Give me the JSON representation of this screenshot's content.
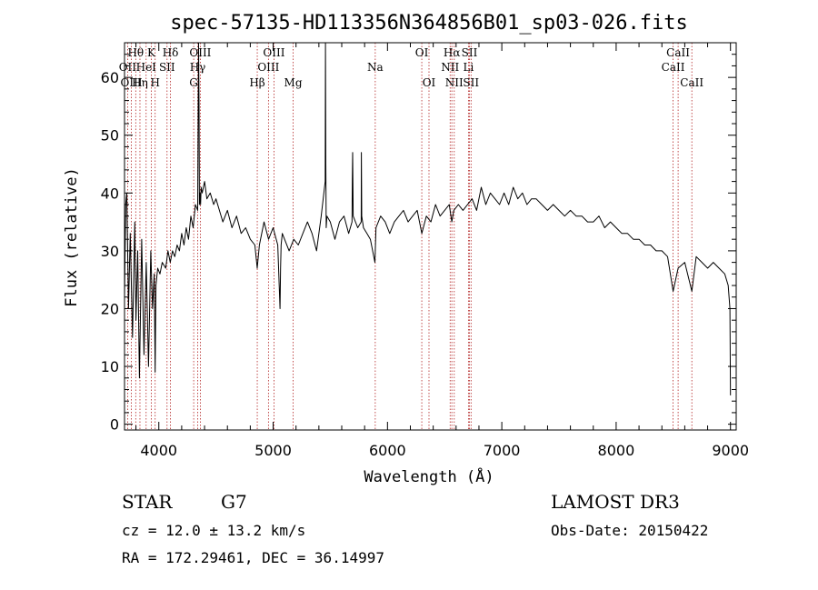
{
  "chart_data": {
    "type": "line",
    "title": "spec-57135-HD113356N364856B01_sp03-026.fits",
    "xlabel": "Wavelength (Å)",
    "ylabel": "Flux (relative)",
    "xlim": [
      3700,
      9050
    ],
    "ylim": [
      -1,
      66
    ],
    "xticks": [
      4000,
      5000,
      6000,
      7000,
      8000,
      9000
    ],
    "yticks": [
      0,
      10,
      20,
      30,
      40,
      50,
      60
    ],
    "line_color": "#000000",
    "marker_color": "#b22222",
    "series": [
      {
        "name": "flux",
        "x": [
          3700,
          3710,
          3720,
          3735,
          3750,
          3770,
          3790,
          3800,
          3815,
          3830,
          3850,
          3870,
          3890,
          3910,
          3930,
          3945,
          3960,
          3968,
          3975,
          3990,
          4010,
          4030,
          4060,
          4080,
          4100,
          4120,
          4140,
          4160,
          4180,
          4200,
          4220,
          4240,
          4260,
          4280,
          4300,
          4320,
          4340,
          4345,
          4348,
          4352,
          4355,
          4360,
          4365,
          4370,
          4380,
          4400,
          4420,
          4450,
          4480,
          4500,
          4530,
          4560,
          4600,
          4640,
          4680,
          4720,
          4760,
          4800,
          4840,
          4861,
          4880,
          4920,
          4960,
          5000,
          5040,
          5060,
          5065,
          5070,
          5080,
          5100,
          5140,
          5180,
          5220,
          5260,
          5300,
          5340,
          5380,
          5420,
          5455,
          5458,
          5461,
          5464,
          5470,
          5500,
          5540,
          5580,
          5620,
          5660,
          5690,
          5692,
          5695,
          5700,
          5740,
          5770,
          5772,
          5775,
          5790,
          5820,
          5850,
          5890,
          5900,
          5940,
          5980,
          6020,
          6060,
          6100,
          6140,
          6180,
          6220,
          6260,
          6300,
          6340,
          6380,
          6420,
          6460,
          6500,
          6540,
          6563,
          6580,
          6620,
          6660,
          6700,
          6740,
          6780,
          6820,
          6860,
          6900,
          6940,
          6980,
          7020,
          7060,
          7100,
          7140,
          7180,
          7220,
          7260,
          7300,
          7350,
          7400,
          7450,
          7500,
          7550,
          7600,
          7650,
          7700,
          7750,
          7800,
          7850,
          7900,
          7950,
          8000,
          8050,
          8100,
          8150,
          8200,
          8250,
          8300,
          8350,
          8400,
          8450,
          8498,
          8542,
          8600,
          8662,
          8700,
          8750,
          8800,
          8850,
          8900,
          8950,
          8980,
          8995,
          9000
        ],
        "y": [
          22,
          38,
          40,
          20,
          33,
          15,
          35,
          18,
          30,
          8,
          32,
          12,
          28,
          10,
          30,
          20,
          26,
          9,
          24,
          27,
          26,
          28,
          27,
          30,
          28,
          30,
          29,
          31,
          30,
          33,
          31,
          34,
          32,
          36,
          34,
          38,
          37,
          55,
          66,
          55,
          38,
          40,
          38,
          41,
          40,
          42,
          39,
          40,
          38,
          39,
          37,
          35,
          37,
          34,
          36,
          33,
          34,
          32,
          31,
          27,
          31,
          35,
          32,
          34,
          31,
          20,
          27,
          31,
          33,
          32,
          30,
          32,
          31,
          33,
          35,
          33,
          30,
          36,
          42,
          66,
          45,
          34,
          36,
          35,
          32,
          35,
          36,
          33,
          35,
          42,
          47,
          36,
          34,
          35,
          47,
          36,
          34,
          33,
          32,
          28,
          34,
          36,
          35,
          33,
          35,
          36,
          37,
          35,
          36,
          37,
          33,
          36,
          35,
          38,
          36,
          37,
          38,
          35,
          37,
          38,
          37,
          38,
          39,
          37,
          41,
          38,
          40,
          39,
          38,
          40,
          38,
          41,
          39,
          40,
          38,
          39,
          39,
          38,
          37,
          38,
          37,
          36,
          37,
          36,
          36,
          35,
          35,
          36,
          34,
          35,
          34,
          33,
          33,
          32,
          32,
          31,
          31,
          30,
          30,
          29,
          23,
          27,
          28,
          23,
          29,
          28,
          27,
          28,
          27,
          26,
          24,
          20,
          5
        ]
      }
    ],
    "spectral_lines": [
      {
        "label": "Hθ",
        "x": 3798,
        "row": 1
      },
      {
        "label": "OII",
        "x": 3727,
        "row": 2
      },
      {
        "label": "OIII",
        "x": 3760,
        "row": 3
      },
      {
        "label": "Hη",
        "x": 3835,
        "row": 3
      },
      {
        "label": "HeI",
        "x": 3889,
        "row": 2
      },
      {
        "label": "K",
        "x": 3934,
        "row": 1
      },
      {
        "label": "H",
        "x": 3968,
        "row": 3
      },
      {
        "label": "SII",
        "x": 4072,
        "row": 2
      },
      {
        "label": "Hδ",
        "x": 4102,
        "row": 1
      },
      {
        "label": "G",
        "x": 4305,
        "row": 3
      },
      {
        "label": "OIII",
        "x": 4363,
        "row": 1
      },
      {
        "label": "Hγ",
        "x": 4340,
        "row": 2
      },
      {
        "label": "Hβ",
        "x": 4861,
        "row": 3
      },
      {
        "label": "OIII",
        "x": 5007,
        "row": 1
      },
      {
        "label": "OIII",
        "x": 4959,
        "row": 2
      },
      {
        "label": "Mg",
        "x": 5175,
        "row": 3
      },
      {
        "label": "Na",
        "x": 5893,
        "row": 2
      },
      {
        "label": "OI",
        "x": 6300,
        "row": 1
      },
      {
        "label": "OI",
        "x": 6363,
        "row": 3
      },
      {
        "label": "Hα",
        "x": 6563,
        "row": 1
      },
      {
        "label": "NII",
        "x": 6548,
        "row": 2
      },
      {
        "label": "NII",
        "x": 6584,
        "row": 3
      },
      {
        "label": "SII",
        "x": 6717,
        "row": 1
      },
      {
        "label": "Li",
        "x": 6708,
        "row": 2
      },
      {
        "label": "SII",
        "x": 6731,
        "row": 3
      },
      {
        "label": "CaII",
        "x": 8542,
        "row": 1
      },
      {
        "label": "CaII",
        "x": 8498,
        "row": 2
      },
      {
        "label": "CaII",
        "x": 8662,
        "row": 3
      }
    ]
  },
  "info": {
    "object_class": "STAR",
    "subclass": "G7",
    "survey": "LAMOST DR3",
    "cz": "cz = 12.0 ± 13.2 km/s",
    "obs_date": "Obs-Date: 20150422",
    "coords": "RA = 172.29461, DEC =  36.14997"
  }
}
